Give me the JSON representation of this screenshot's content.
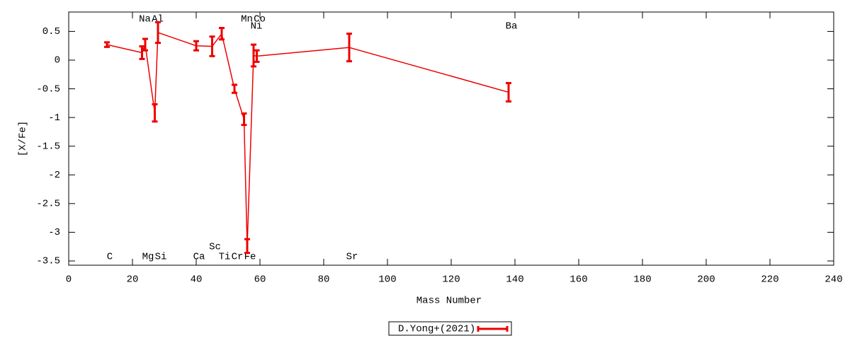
{
  "chart_data": {
    "type": "line",
    "x_label": "Mass Number",
    "y_label": "[X/Fe]",
    "x": [
      12,
      23,
      24,
      27,
      28,
      40,
      45,
      48,
      52,
      55,
      56,
      58,
      59,
      88,
      138
    ],
    "point_labels": [
      "C",
      "Na",
      "Mg",
      "Al",
      "Si",
      "Ca",
      "Sc",
      "Ti",
      "Cr",
      "Mn",
      "Fe",
      "Ni",
      "Co",
      "Sr",
      "Ba"
    ],
    "series": [
      {
        "name": "D.Yong+(2021)",
        "color": "#ee0000",
        "values": [
          0.27,
          0.13,
          0.27,
          -0.92,
          0.48,
          0.25,
          0.24,
          0.46,
          -0.5,
          -1.03,
          -3.24,
          0.08,
          0.07,
          0.22,
          -0.56
        ],
        "errors": [
          0.04,
          0.11,
          0.1,
          0.15,
          0.18,
          0.08,
          0.17,
          0.1,
          0.07,
          0.1,
          0.12,
          0.19,
          0.1,
          0.24,
          0.16
        ]
      }
    ],
    "xlim": [
      0,
      240
    ],
    "xticks": [
      0,
      20,
      40,
      60,
      80,
      100,
      120,
      140,
      160,
      180,
      200,
      220,
      240
    ],
    "ylim": [
      -3.574,
      0.838
    ],
    "yticks": [
      0.5,
      0,
      -0.5,
      -1,
      -1.5,
      -2,
      -2.5,
      -3,
      -3.5
    ],
    "legend": "bottom"
  }
}
